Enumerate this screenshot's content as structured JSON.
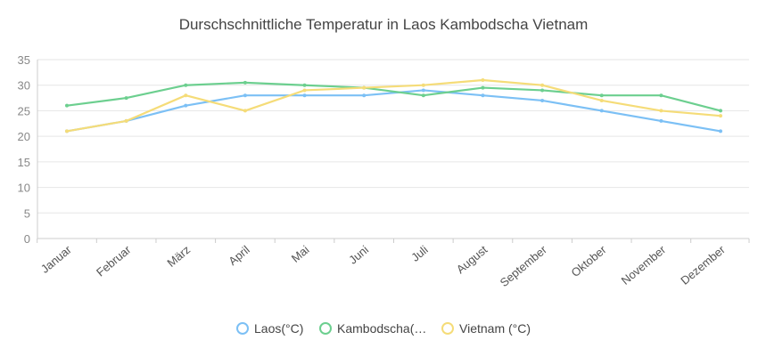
{
  "chart_data": {
    "type": "line",
    "title": "Durschschnittliche Temperatur in Laos Kambodscha Vietnam",
    "categories": [
      "Januar",
      "Februar",
      "März",
      "April",
      "Mai",
      "Juni",
      "Juli",
      "August",
      "September",
      "Oktober",
      "November",
      "Dezember"
    ],
    "ylim": [
      0,
      35
    ],
    "yticks": [
      0,
      5,
      10,
      15,
      20,
      25,
      30,
      35
    ],
    "grid": true,
    "legend_position": "bottom",
    "series": [
      {
        "name": "Laos(°C)",
        "color": "#7cc0f5",
        "values": [
          21,
          23,
          26,
          28,
          28,
          28,
          29,
          28,
          27,
          25,
          23,
          21
        ]
      },
      {
        "name": "Kambodscha(…",
        "color": "#6ccf8f",
        "values": [
          26,
          27.5,
          30,
          30.5,
          30,
          29.5,
          28,
          29.5,
          29,
          28,
          28,
          25
        ]
      },
      {
        "name": "Vietnam (°C)",
        "color": "#f5dc78",
        "values": [
          21,
          23,
          28,
          25,
          29,
          29.5,
          30,
          31,
          30,
          27,
          25,
          24
        ]
      }
    ]
  }
}
